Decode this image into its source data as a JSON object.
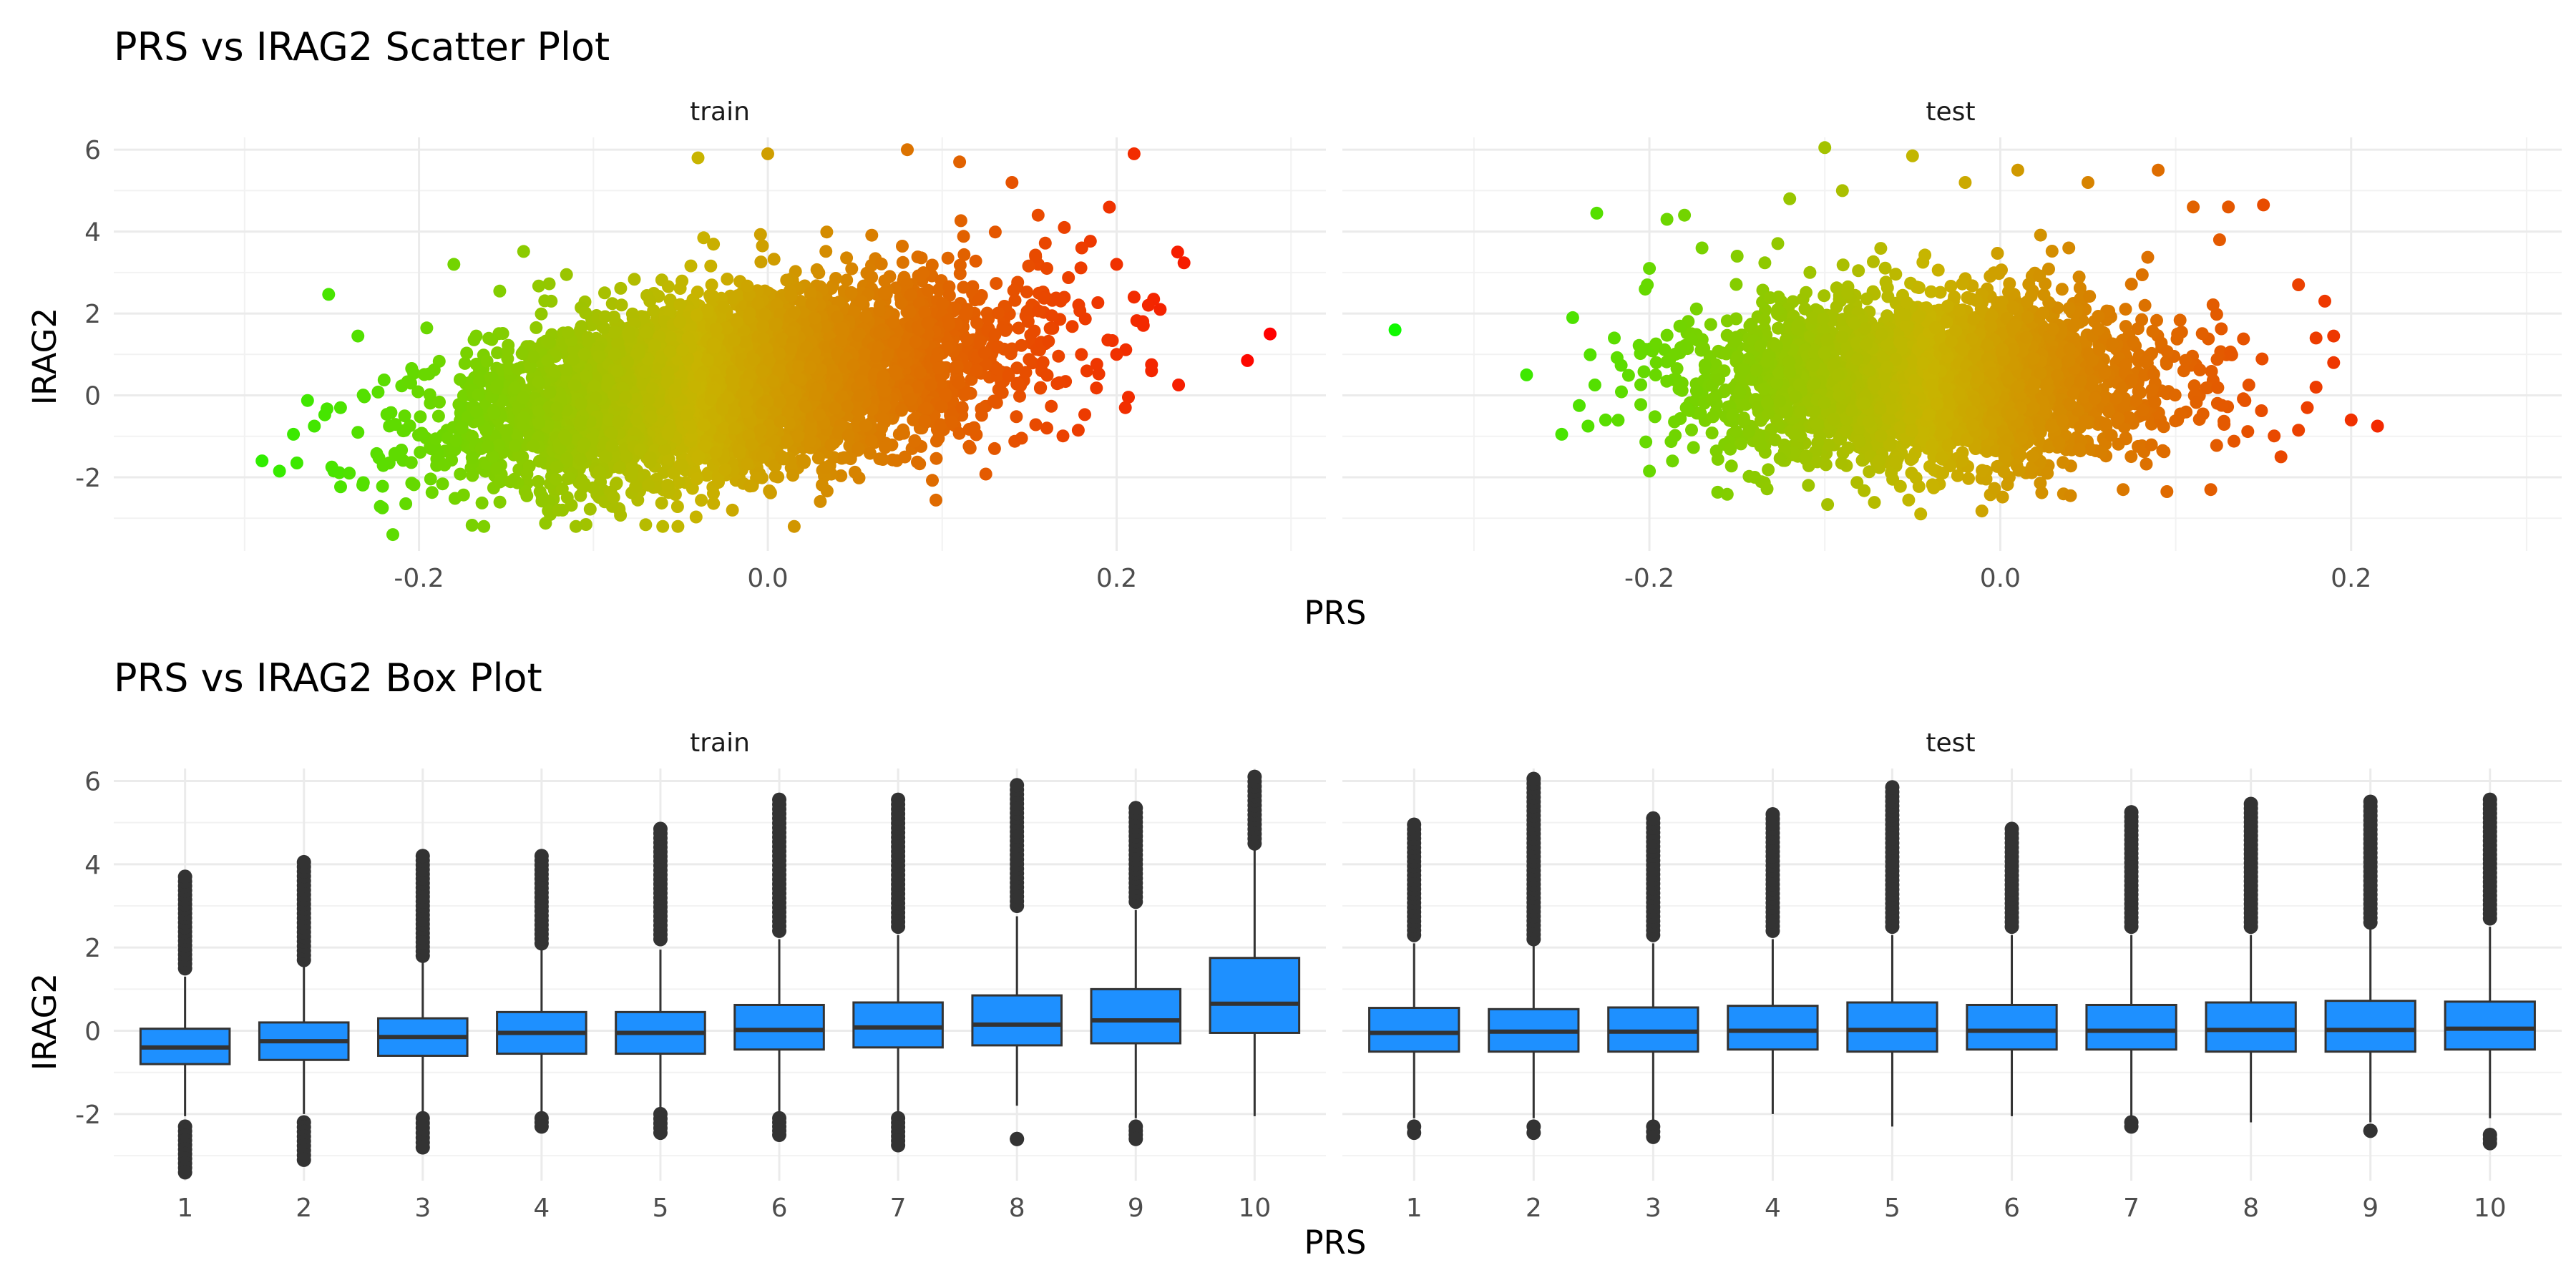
{
  "chart_data": [
    {
      "type": "scatter",
      "title": "PRS vs IRAG2 Scatter Plot",
      "xlabel": "PRS",
      "ylabel": "IRAG2",
      "facets": [
        "train",
        "test"
      ],
      "xlim": [
        -0.375,
        0.32
      ],
      "ylim": [
        -3.8,
        6.3
      ],
      "x_ticks": [
        -0.2,
        0.0,
        0.2
      ],
      "x_tick_labels": [
        "-0.2",
        "0.0",
        "0.2"
      ],
      "y_ticks": [
        -2,
        0,
        2,
        4,
        6
      ],
      "y_tick_labels": [
        "-2",
        "0",
        "2",
        "4",
        "6"
      ],
      "grid": true,
      "color_scale": {
        "low": "#00ff00",
        "mid": "#c8b400",
        "high": "#ff0000",
        "low_value": -0.37,
        "high_value": 0.29
      },
      "panels": [
        {
          "name": "train",
          "cloud": {
            "n": 5000,
            "x_mean": -0.02,
            "x_sd": 0.075,
            "y_intercept": 0.3,
            "y_slope": 6.0,
            "y_sd": 1.05,
            "seed": 11
          },
          "extreme_points": [
            [
              -0.29,
              -1.6
            ],
            [
              -0.28,
              -1.85
            ],
            [
              -0.27,
              -1.65
            ],
            [
              -0.272,
              -0.95
            ],
            [
              -0.26,
              -0.75
            ],
            [
              -0.245,
              -0.3
            ],
            [
              -0.235,
              1.45
            ],
            [
              -0.25,
              -1.75
            ],
            [
              -0.24,
              -1.9
            ],
            [
              -0.215,
              -3.4
            ],
            [
              -0.18,
              3.2
            ],
            [
              -0.11,
              -3.2
            ],
            [
              -0.12,
              -2.8
            ],
            [
              -0.04,
              5.8
            ],
            [
              0.0,
              5.9
            ],
            [
              0.08,
              6.0
            ],
            [
              0.11,
              5.7
            ],
            [
              0.14,
              5.2
            ],
            [
              0.155,
              4.4
            ],
            [
              0.17,
              4.1
            ],
            [
              0.18,
              3.6
            ],
            [
              0.2,
              3.2
            ],
            [
              0.21,
              2.4
            ],
            [
              0.225,
              2.1
            ],
            [
              0.235,
              3.5
            ],
            [
              0.2,
              1.0
            ],
            [
              0.22,
              0.6
            ],
            [
              0.205,
              -0.3
            ],
            [
              0.178,
              -0.85
            ],
            [
              0.16,
              -0.8
            ],
            [
              0.13,
              -1.3
            ],
            [
              0.21,
              5.9
            ],
            [
              0.275,
              0.85
            ],
            [
              0.288,
              1.5
            ],
            [
              0.22,
              0.75
            ],
            [
              0.195,
              1.35
            ],
            [
              0.215,
              1.8
            ],
            [
              0.16,
              3.1
            ]
          ]
        },
        {
          "name": "test",
          "cloud": {
            "n": 3000,
            "x_mean": -0.04,
            "x_sd": 0.065,
            "y_intercept": 0.35,
            "y_slope": 0.0,
            "y_sd": 1.0,
            "seed": 23
          },
          "extreme_points": [
            [
              -0.345,
              1.6
            ],
            [
              -0.27,
              0.5
            ],
            [
              -0.25,
              -0.95
            ],
            [
              -0.24,
              -0.25
            ],
            [
              -0.235,
              -0.75
            ],
            [
              -0.23,
              4.45
            ],
            [
              -0.225,
              -0.6
            ],
            [
              -0.22,
              1.4
            ],
            [
              -0.2,
              -1.85
            ],
            [
              -0.2,
              3.1
            ],
            [
              -0.19,
              4.3
            ],
            [
              -0.18,
              4.4
            ],
            [
              -0.17,
              3.6
            ],
            [
              -0.15,
              3.4
            ],
            [
              -0.14,
              -2.0
            ],
            [
              -0.12,
              4.8
            ],
            [
              -0.1,
              6.05
            ],
            [
              -0.09,
              5.0
            ],
            [
              -0.05,
              5.85
            ],
            [
              -0.02,
              5.2
            ],
            [
              0.01,
              5.5
            ],
            [
              0.05,
              5.2
            ],
            [
              0.09,
              5.5
            ],
            [
              0.11,
              4.6
            ],
            [
              0.125,
              3.8
            ],
            [
              0.13,
              4.6
            ],
            [
              0.15,
              4.65
            ],
            [
              0.17,
              2.7
            ],
            [
              0.18,
              1.4
            ],
            [
              0.185,
              2.3
            ],
            [
              0.19,
              1.45
            ],
            [
              0.19,
              0.8
            ],
            [
              0.18,
              0.2
            ],
            [
              0.175,
              -0.3
            ],
            [
              0.17,
              -0.85
            ],
            [
              0.16,
              -1.5
            ],
            [
              0.12,
              -2.3
            ],
            [
              0.095,
              -2.35
            ],
            [
              0.07,
              -2.3
            ],
            [
              0.04,
              -2.45
            ],
            [
              0.2,
              -0.6
            ],
            [
              0.215,
              -0.75
            ]
          ]
        }
      ]
    },
    {
      "type": "box",
      "title": "PRS vs IRAG2 Box Plot",
      "xlabel": "PRS",
      "ylabel": "IRAG2",
      "facets": [
        "train",
        "test"
      ],
      "categories": [
        "1",
        "2",
        "3",
        "4",
        "5",
        "6",
        "7",
        "8",
        "9",
        "10"
      ],
      "ylim": [
        -3.6,
        6.3
      ],
      "y_ticks": [
        -2,
        0,
        2,
        4,
        6
      ],
      "y_tick_labels": [
        "-2",
        "0",
        "2",
        "4",
        "6"
      ],
      "grid": true,
      "box_fill": "#1e90ff",
      "box_stroke": "#333333",
      "panels": [
        {
          "name": "train",
          "boxes": [
            {
              "q1": -0.8,
              "median": -0.4,
              "q3": 0.05,
              "whisker_low": -2.05,
              "whisker_high": 1.3,
              "out_low": [
                -2.3,
                -3.4
              ],
              "out_high": [
                1.5,
                3.7
              ]
            },
            {
              "q1": -0.7,
              "median": -0.25,
              "q3": 0.2,
              "whisker_low": -2.0,
              "whisker_high": 1.55,
              "out_low": [
                -2.2,
                -3.1
              ],
              "out_high": [
                1.7,
                4.05
              ]
            },
            {
              "q1": -0.6,
              "median": -0.15,
              "q3": 0.3,
              "whisker_low": -1.95,
              "whisker_high": 1.65,
              "out_low": [
                -2.1,
                -2.8
              ],
              "out_high": [
                1.8,
                4.2
              ]
            },
            {
              "q1": -0.55,
              "median": -0.05,
              "q3": 0.45,
              "whisker_low": -2.0,
              "whisker_high": 1.95,
              "out_low": [
                -2.1,
                -2.3
              ],
              "out_high": [
                2.1,
                4.2
              ]
            },
            {
              "q1": -0.55,
              "median": -0.05,
              "q3": 0.45,
              "whisker_low": -1.9,
              "whisker_high": 1.95,
              "out_low": [
                -2.0,
                -2.45
              ],
              "out_high": [
                2.2,
                4.85
              ]
            },
            {
              "q1": -0.45,
              "median": 0.02,
              "q3": 0.62,
              "whisker_low": -2.0,
              "whisker_high": 2.2,
              "out_low": [
                -2.1,
                -2.5
              ],
              "out_high": [
                2.4,
                5.55
              ]
            },
            {
              "q1": -0.4,
              "median": 0.08,
              "q3": 0.68,
              "whisker_low": -2.0,
              "whisker_high": 2.3,
              "out_low": [
                -2.1,
                -2.75
              ],
              "out_high": [
                2.5,
                5.55
              ]
            },
            {
              "q1": -0.35,
              "median": 0.15,
              "q3": 0.85,
              "whisker_low": -1.8,
              "whisker_high": 2.75,
              "out_low": [
                -2.6,
                -2.6
              ],
              "out_high": [
                3.0,
                5.9
              ]
            },
            {
              "q1": -0.3,
              "median": 0.25,
              "q3": 1.0,
              "whisker_low": -2.1,
              "whisker_high": 2.9,
              "out_low": [
                -2.3,
                -2.6
              ],
              "out_high": [
                3.1,
                5.35
              ]
            },
            {
              "q1": -0.05,
              "median": 0.65,
              "q3": 1.75,
              "whisker_low": -2.05,
              "whisker_high": 4.35,
              "out_low": [],
              "out_high": [
                4.5,
                6.1
              ]
            }
          ]
        },
        {
          "name": "test",
          "boxes": [
            {
              "q1": -0.5,
              "median": -0.05,
              "q3": 0.55,
              "whisker_low": -2.1,
              "whisker_high": 2.1,
              "out_low": [
                -2.3,
                -2.45
              ],
              "out_high": [
                2.3,
                4.95
              ]
            },
            {
              "q1": -0.5,
              "median": -0.02,
              "q3": 0.52,
              "whisker_low": -2.1,
              "whisker_high": 2.05,
              "out_low": [
                -2.3,
                -2.45
              ],
              "out_high": [
                2.2,
                6.05
              ]
            },
            {
              "q1": -0.5,
              "median": -0.02,
              "q3": 0.56,
              "whisker_low": -2.15,
              "whisker_high": 2.1,
              "out_low": [
                -2.3,
                -2.55
              ],
              "out_high": [
                2.3,
                5.1
              ]
            },
            {
              "q1": -0.45,
              "median": 0.0,
              "q3": 0.6,
              "whisker_low": -2.0,
              "whisker_high": 2.2,
              "out_low": [],
              "out_high": [
                2.4,
                5.2
              ]
            },
            {
              "q1": -0.5,
              "median": 0.02,
              "q3": 0.68,
              "whisker_low": -2.3,
              "whisker_high": 2.3,
              "out_low": [],
              "out_high": [
                2.5,
                5.85
              ]
            },
            {
              "q1": -0.45,
              "median": 0.0,
              "q3": 0.62,
              "whisker_low": -2.05,
              "whisker_high": 2.3,
              "out_low": [],
              "out_high": [
                2.5,
                4.85
              ]
            },
            {
              "q1": -0.45,
              "median": 0.0,
              "q3": 0.62,
              "whisker_low": -2.1,
              "whisker_high": 2.3,
              "out_low": [
                -2.2,
                -2.3
              ],
              "out_high": [
                2.5,
                5.25
              ]
            },
            {
              "q1": -0.5,
              "median": 0.02,
              "q3": 0.68,
              "whisker_low": -2.2,
              "whisker_high": 2.3,
              "out_low": [],
              "out_high": [
                2.5,
                5.45
              ]
            },
            {
              "q1": -0.5,
              "median": 0.02,
              "q3": 0.72,
              "whisker_low": -2.2,
              "whisker_high": 2.45,
              "out_low": [
                -2.4,
                -2.4
              ],
              "out_high": [
                2.6,
                5.5
              ]
            },
            {
              "q1": -0.45,
              "median": 0.05,
              "q3": 0.7,
              "whisker_low": -2.1,
              "whisker_high": 2.5,
              "out_low": [
                -2.5,
                -2.7
              ],
              "out_high": [
                2.7,
                5.55
              ]
            }
          ]
        }
      ]
    }
  ]
}
